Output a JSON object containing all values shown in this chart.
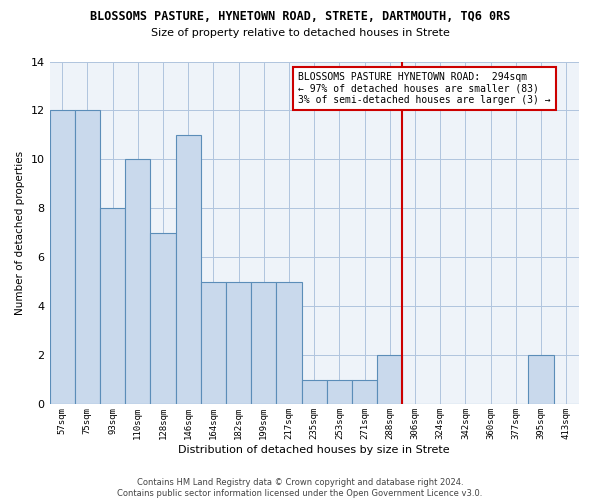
{
  "title": "BLOSSOMS PASTURE, HYNETOWN ROAD, STRETE, DARTMOUTH, TQ6 0RS",
  "subtitle": "Size of property relative to detached houses in Strete",
  "xlabel": "Distribution of detached houses by size in Strete",
  "ylabel": "Number of detached properties",
  "bar_labels": [
    "57sqm",
    "75sqm",
    "93sqm",
    "110sqm",
    "128sqm",
    "146sqm",
    "164sqm",
    "182sqm",
    "199sqm",
    "217sqm",
    "235sqm",
    "253sqm",
    "271sqm",
    "288sqm",
    "306sqm",
    "324sqm",
    "342sqm",
    "360sqm",
    "377sqm",
    "395sqm",
    "413sqm"
  ],
  "bar_values": [
    12,
    12,
    8,
    10,
    7,
    11,
    5,
    5,
    5,
    5,
    1,
    1,
    1,
    2,
    0,
    0,
    0,
    0,
    0,
    2,
    0
  ],
  "bar_color": "#c9d9ec",
  "bar_edgecolor": "#5b8db8",
  "bar_linewidth": 0.8,
  "grid_color": "#b0c4de",
  "bg_color": "#eef3f9",
  "vline_x": 13.5,
  "vline_color": "#cc0000",
  "annotation_title": "BLOSSOMS PASTURE HYNETOWN ROAD:  294sqm",
  "annotation_line2": "← 97% of detached houses are smaller (83)",
  "annotation_line3": "3% of semi-detached houses are larger (3) →",
  "ylim": [
    0,
    14
  ],
  "yticks": [
    0,
    2,
    4,
    6,
    8,
    10,
    12,
    14
  ],
  "footer_line1": "Contains HM Land Registry data © Crown copyright and database right 2024.",
  "footer_line2": "Contains public sector information licensed under the Open Government Licence v3.0."
}
